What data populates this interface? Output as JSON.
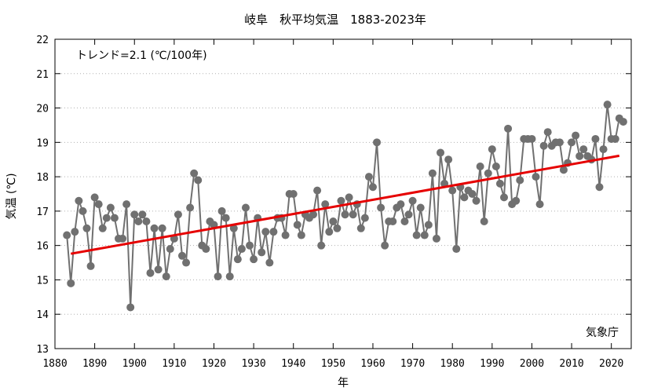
{
  "chart_data": {
    "type": "line",
    "title": "岐阜　秋平均気温　1883-2023年",
    "xlabel": "年",
    "ylabel": "気温 (℃)",
    "xlim": [
      1880,
      2025
    ],
    "ylim": [
      13,
      22
    ],
    "x_ticks": [
      1880,
      1890,
      1900,
      1910,
      1920,
      1930,
      1940,
      1950,
      1960,
      1970,
      1980,
      1990,
      2000,
      2010,
      2020
    ],
    "y_ticks": [
      13,
      14,
      15,
      16,
      17,
      18,
      19,
      20,
      21,
      22
    ],
    "trend_label": "トレンド=2.1 (℃/100年)",
    "source_label": "気象庁",
    "colors": {
      "series": "#707070",
      "trend": "#e60000"
    },
    "trend": {
      "x": [
        1884,
        2022
      ],
      "y": [
        15.76,
        18.61
      ]
    },
    "series": [
      {
        "x": [
          1883,
          1884,
          1885,
          1886,
          1887,
          1888,
          1889,
          1890,
          1891,
          1892,
          1893,
          1894,
          1895,
          1896,
          1897,
          1898,
          1899,
          1900,
          1901,
          1902,
          1903,
          1904,
          1905,
          1906,
          1907,
          1908,
          1909,
          1910,
          1911,
          1912,
          1913,
          1914,
          1915,
          1916,
          1917,
          1918,
          1919,
          1920,
          1921,
          1922,
          1923,
          1924,
          1925,
          1926,
          1927,
          1928,
          1929,
          1930,
          1931,
          1932,
          1933,
          1934,
          1935,
          1936,
          1937,
          1938,
          1939,
          1940,
          1941,
          1942,
          1943,
          1944,
          1945,
          1946,
          1947,
          1948,
          1949,
          1950,
          1951,
          1952,
          1953,
          1954,
          1955,
          1956,
          1957,
          1958,
          1959,
          1960,
          1961,
          1962,
          1963,
          1964,
          1965,
          1966,
          1967,
          1968,
          1969,
          1970,
          1971,
          1972,
          1973,
          1974,
          1975,
          1976,
          1977,
          1978,
          1979,
          1980,
          1981,
          1982,
          1983,
          1984,
          1985,
          1986,
          1987,
          1988,
          1989,
          1990,
          1991,
          1992,
          1993,
          1994,
          1995,
          1996,
          1997,
          1998,
          1999,
          2000,
          2001,
          2002,
          2003,
          2004,
          2005,
          2006,
          2007,
          2008,
          2009,
          2010,
          2011,
          2012,
          2013,
          2014,
          2015,
          2016,
          2017,
          2018,
          2019,
          2020,
          2021,
          2022,
          2023
        ],
        "values": [
          16.3,
          14.9,
          16.4,
          17.3,
          17.0,
          16.5,
          15.4,
          17.4,
          17.2,
          16.5,
          16.8,
          17.1,
          16.8,
          16.2,
          16.2,
          17.2,
          14.2,
          16.9,
          16.7,
          16.9,
          16.7,
          15.2,
          16.5,
          15.3,
          16.5,
          15.1,
          15.9,
          16.2,
          16.9,
          15.7,
          15.5,
          17.1,
          18.1,
          17.9,
          16.0,
          15.9,
          16.7,
          16.6,
          15.1,
          17.0,
          16.8,
          15.1,
          16.5,
          15.6,
          15.9,
          17.1,
          16.0,
          15.6,
          16.8,
          15.8,
          16.4,
          15.5,
          16.4,
          16.8,
          16.8,
          16.3,
          17.5,
          17.5,
          16.6,
          16.3,
          16.9,
          16.8,
          16.9,
          17.6,
          16.0,
          17.2,
          16.4,
          16.7,
          16.5,
          17.3,
          16.9,
          17.4,
          16.9,
          17.2,
          16.5,
          16.8,
          18.0,
          17.7,
          19.0,
          17.1,
          16.0,
          16.7,
          16.7,
          17.1,
          17.2,
          16.7,
          16.9,
          17.3,
          16.3,
          17.1,
          16.3,
          16.6,
          18.1,
          16.2,
          18.7,
          17.8,
          18.5,
          17.6,
          15.9,
          17.7,
          17.4,
          17.6,
          17.5,
          17.3,
          18.3,
          16.7,
          18.1,
          18.8,
          18.3,
          17.8,
          17.4,
          19.4,
          17.2,
          17.3,
          17.9,
          19.1,
          19.1,
          19.1,
          18.0,
          17.2,
          18.9,
          19.3,
          18.9,
          19.0,
          19.0,
          18.2,
          18.4,
          19.0,
          19.2,
          18.6,
          18.8,
          18.6,
          18.5,
          19.1,
          17.7,
          18.8,
          20.1,
          19.1,
          19.1,
          19.7,
          19.6
        ]
      }
    ]
  }
}
